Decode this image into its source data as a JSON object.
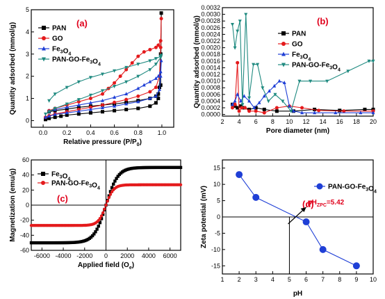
{
  "chart_data": [
    {
      "type": "line",
      "panel_label": "(a)",
      "xlabel": "Relative pressure (P/P",
      "xlabel_sub": "0",
      "xlabel_close": ")",
      "ylabel": "Quantity adsorbed (mmol/g)",
      "xlim": [
        -0.1,
        1.1
      ],
      "ylim": [
        -0.3,
        5
      ],
      "xticks": [
        "0.0",
        "0.2",
        "0.4",
        "0.6",
        "0.8",
        "1.0"
      ],
      "xtick_values": [
        0,
        0.2,
        0.4,
        0.6,
        0.8,
        1.0
      ],
      "yticks": [
        "0",
        "1",
        "2",
        "3",
        "4",
        "5"
      ],
      "ytick_values": [
        0,
        1,
        2,
        3,
        4,
        5
      ],
      "series": [
        {
          "name": "PAN",
          "color": "#000000",
          "marker": "square",
          "x": [
            0.02,
            0.05,
            0.1,
            0.15,
            0.2,
            0.3,
            0.4,
            0.5,
            0.6,
            0.7,
            0.8,
            0.9,
            0.95,
            0.97,
            0.98,
            0.99,
            0.995,
            0.99,
            0.97,
            0.95,
            0.9,
            0.8,
            0.7,
            0.6,
            0.5,
            0.4,
            0.3,
            0.2,
            0.1,
            0.05
          ],
          "y": [
            0.05,
            0.1,
            0.15,
            0.2,
            0.25,
            0.3,
            0.35,
            0.4,
            0.45,
            0.5,
            0.55,
            0.65,
            0.8,
            1.0,
            1.5,
            3.0,
            4.85,
            1.6,
            1.2,
            1.1,
            1.0,
            0.9,
            0.82,
            0.75,
            0.7,
            0.65,
            0.6,
            0.52,
            0.45,
            0.4
          ]
        },
        {
          "name": "GO",
          "color": "#e41a1c",
          "marker": "circle",
          "x": [
            0.02,
            0.05,
            0.1,
            0.2,
            0.3,
            0.4,
            0.5,
            0.6,
            0.7,
            0.8,
            0.9,
            0.95,
            0.98,
            0.99,
            0.995,
            0.99,
            0.97,
            0.95,
            0.9,
            0.85,
            0.8,
            0.75,
            0.7,
            0.65,
            0.6,
            0.55,
            0.5,
            0.4,
            0.3,
            0.2,
            0.1,
            0.05
          ],
          "y": [
            0.15,
            0.22,
            0.3,
            0.4,
            0.5,
            0.6,
            0.7,
            0.82,
            0.95,
            1.1,
            1.3,
            1.5,
            2.0,
            3.3,
            4.6,
            3.6,
            3.4,
            3.3,
            3.2,
            3.1,
            2.9,
            2.6,
            2.3,
            2.0,
            1.7,
            1.45,
            1.2,
            1.0,
            0.85,
            0.7,
            0.55,
            0.45
          ]
        },
        {
          "name": "Fe3O4",
          "color": "#1f3fd6",
          "marker": "triangle",
          "x": [
            0.02,
            0.05,
            0.1,
            0.2,
            0.3,
            0.4,
            0.5,
            0.6,
            0.7,
            0.8,
            0.9,
            0.95,
            0.98,
            0.99,
            0.995,
            0.99,
            0.97,
            0.95,
            0.9,
            0.85,
            0.8,
            0.7,
            0.6,
            0.5,
            0.4,
            0.3,
            0.2,
            0.1,
            0.05
          ],
          "y": [
            0.15,
            0.2,
            0.28,
            0.35,
            0.42,
            0.5,
            0.58,
            0.65,
            0.75,
            0.85,
            1.0,
            1.1,
            1.4,
            2.0,
            2.7,
            2.2,
            2.0,
            1.9,
            1.75,
            1.6,
            1.45,
            1.2,
            1.05,
            0.9,
            0.8,
            0.7,
            0.6,
            0.5,
            0.42
          ]
        },
        {
          "name": "PAN-GO-Fe3O4",
          "color": "#1f8a80",
          "marker": "triangle-down",
          "x": [
            0.02,
            0.05,
            0.1,
            0.2,
            0.3,
            0.4,
            0.5,
            0.6,
            0.7,
            0.8,
            0.9,
            0.95,
            0.99,
            0.995,
            0.99,
            0.95,
            0.9,
            0.8,
            0.7,
            0.6,
            0.5,
            0.4,
            0.3,
            0.2,
            0.1,
            0.05
          ],
          "y": [
            0.3,
            0.4,
            0.55,
            0.75,
            0.95,
            1.15,
            1.35,
            1.55,
            1.75,
            2.0,
            2.3,
            2.55,
            2.85,
            2.95,
            2.9,
            2.8,
            2.7,
            2.55,
            2.4,
            2.25,
            2.1,
            1.95,
            1.75,
            1.5,
            1.2,
            0.9
          ]
        }
      ],
      "legend_position": "top-left"
    },
    {
      "type": "line",
      "panel_label": "(b)",
      "xlabel": "Pore diameter (nm)",
      "ylabel": "Quantity adsorbed (mmol/g)",
      "xlim": [
        2,
        20
      ],
      "ylim": [
        -5e-05,
        0.0032
      ],
      "xticks": [
        "2",
        "4",
        "6",
        "8",
        "10",
        "12",
        "14",
        "16",
        "18",
        "20"
      ],
      "xtick_values": [
        2,
        4,
        6,
        8,
        10,
        12,
        14,
        16,
        18,
        20
      ],
      "yticks": [
        "0.0000",
        "0.0002",
        "0.0004",
        "0.0006",
        "0.0008",
        "0.0010",
        "0.0012",
        "0.0014",
        "0.0016",
        "0.0018",
        "0.0020",
        "0.0022",
        "0.0024",
        "0.0026",
        "0.0028",
        "0.0030",
        "0.0032"
      ],
      "ytick_values": [
        0,
        0.0002,
        0.0004,
        0.0006,
        0.0008,
        0.001,
        0.0012,
        0.0014,
        0.0016,
        0.0018,
        0.002,
        0.0022,
        0.0024,
        0.0026,
        0.0028,
        0.003,
        0.0032
      ],
      "series": [
        {
          "name": "PAN",
          "color": "#000000",
          "marker": "square",
          "x": [
            3.2,
            3.5,
            3.8,
            4.2,
            4.6,
            5.2,
            6.0,
            7.0,
            8.5,
            10.5,
            13.0,
            16.0,
            19.0,
            20.0
          ],
          "y": [
            0.0003,
            0.00025,
            0.0002,
            0.00025,
            0.0002,
            0.00015,
            0.0002,
            0.00015,
            0.0001,
            0.0001,
            0.00015,
            0.00012,
            0.00015,
            0.00015
          ]
        },
        {
          "name": "GO",
          "color": "#e41a1c",
          "marker": "circle",
          "x": [
            3.2,
            3.5,
            3.8,
            4.0,
            4.3,
            4.7,
            5.2,
            6.0,
            7.0,
            8.5,
            10.0,
            11.5,
            13.5,
            16.5,
            20.0
          ],
          "y": [
            0.0002,
            0.0003,
            0.00155,
            0.0001,
            0.0002,
            0.0002,
            0.0001,
            0.0001,
            5e-05,
            0.0002,
            0.00025,
            0.0002,
            0.00012,
            0.0001,
            0.0001
          ]
        },
        {
          "name": "Fe3O4",
          "color": "#1f3fd6",
          "marker": "triangle",
          "x": [
            3.2,
            3.5,
            3.8,
            4.2,
            4.6,
            5.2,
            5.8,
            6.4,
            7.0,
            7.6,
            8.2,
            8.8,
            9.4,
            10.0,
            10.5,
            11.5,
            13.0,
            15.5,
            18.5,
            20.0
          ],
          "y": [
            0.0003,
            0.0004,
            0.0006,
            0.0004,
            0.00055,
            0.0004,
            0.0002,
            0.00035,
            0.00055,
            0.0007,
            0.00085,
            0.001,
            0.00095,
            0.00025,
            0.0001,
            5e-05,
            5e-05,
            5e-05,
            5e-05,
            5e-05
          ]
        },
        {
          "name": "PAN-GO-Fe3O4",
          "color": "#1f8a80",
          "marker": "triangle-down",
          "x": [
            3.2,
            3.5,
            3.8,
            4.1,
            4.4,
            4.8,
            5.2,
            5.7,
            6.2,
            6.8,
            7.5,
            8.3,
            9.2,
            10.2,
            11.2,
            12.5,
            14.5,
            17.0,
            19.5,
            20.0
          ],
          "y": [
            0.0027,
            0.002,
            0.0025,
            0.0028,
            0.0003,
            0.003,
            0.0005,
            0.0015,
            0.0015,
            0.0008,
            0.0004,
            0.0006,
            0.0004,
            0.0001,
            0.001,
            0.001,
            0.001,
            0.0013,
            0.0016,
            0.0016
          ]
        }
      ],
      "legend_position": "top-right"
    },
    {
      "type": "line",
      "panel_label": "(c)",
      "xlabel": "Applied field (O",
      "xlabel_sub": "e",
      "xlabel_close": ")",
      "ylabel": "Magnetization (emu/g)",
      "xlim": [
        -7000,
        7000
      ],
      "ylim": [
        -60,
        60
      ],
      "xticks": [
        "-6000",
        "-4000",
        "-2000",
        "0",
        "2000",
        "4000",
        "6000"
      ],
      "xtick_values": [
        -6000,
        -4000,
        -2000,
        0,
        2000,
        4000,
        6000
      ],
      "yticks": [
        "-60",
        "-40",
        "-20",
        "0",
        "20",
        "40",
        "60"
      ],
      "ytick_values": [
        -60,
        -40,
        -20,
        0,
        20,
        40,
        60
      ],
      "series": [
        {
          "name": "Fe3O4",
          "color": "#000000",
          "marker": "square",
          "saturation": 50,
          "k": 0.0009
        },
        {
          "name": "PAN-GO-Fe3O4",
          "color": "#e41a1c",
          "marker": "circle",
          "saturation": 27,
          "k": 0.0014
        }
      ],
      "legend_position": "top-left"
    },
    {
      "type": "line",
      "panel_label": "(d)",
      "xlabel": "pH",
      "ylabel": "Zeta potential (mV)",
      "xlim": [
        1,
        10
      ],
      "ylim": [
        -17.5,
        17.5
      ],
      "xticks": [
        "1",
        "2",
        "3",
        "4",
        "5",
        "6",
        "7",
        "8",
        "9",
        "10"
      ],
      "xtick_values": [
        1,
        2,
        3,
        4,
        5,
        6,
        7,
        8,
        9,
        10
      ],
      "yticks": [
        "-15",
        "-10",
        "-5",
        "0",
        "5",
        "10",
        "15"
      ],
      "ytick_values": [
        -15,
        -10,
        -5,
        0,
        5,
        10,
        15
      ],
      "series": [
        {
          "name": "PAN-GO-Fe3O4",
          "color": "#1f3fd6",
          "marker": "circle",
          "x": [
            2,
            3,
            6,
            7,
            9
          ],
          "y": [
            13,
            6,
            -1.5,
            -10,
            -15
          ]
        }
      ],
      "annotation": {
        "text": "pH",
        "sub": "ZPC",
        "value": "=5.42",
        "x": 5.42,
        "y": 0
      },
      "legend_position": "top-right"
    }
  ]
}
